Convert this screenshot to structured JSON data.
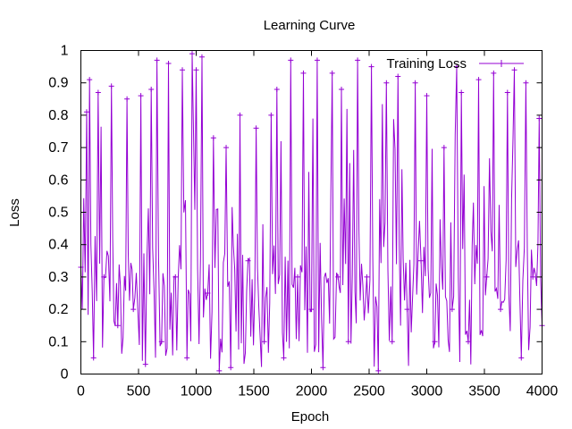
{
  "chart_data": {
    "type": "line",
    "title": "Learning Curve",
    "xlabel": "Epoch",
    "ylabel": "Loss",
    "xlim": [
      0,
      4000
    ],
    "ylim": [
      0,
      1
    ],
    "x_ticks": [
      "0",
      "500",
      "1000",
      "1500",
      "2000",
      "2500",
      "3000",
      "3500",
      "4000"
    ],
    "y_ticks": [
      "0",
      "0.1",
      "0.2",
      "0.3",
      "0.4",
      "0.5",
      "0.6",
      "0.7",
      "0.8",
      "0.9",
      "1"
    ],
    "grid": false,
    "legend_position": "top-right",
    "series": [
      {
        "name": "Training Loss",
        "color": "#9400d3",
        "marker": "plus",
        "points_sampled": [
          [
            0,
            0.33
          ],
          [
            50,
            0.81
          ],
          [
            75,
            0.91
          ],
          [
            110,
            0.05
          ],
          [
            150,
            0.87
          ],
          [
            200,
            0.3
          ],
          [
            265,
            0.89
          ],
          [
            320,
            0.15
          ],
          [
            400,
            0.85
          ],
          [
            455,
            0.2
          ],
          [
            520,
            0.86
          ],
          [
            560,
            0.03
          ],
          [
            610,
            0.88
          ],
          [
            660,
            0.97
          ],
          [
            700,
            0.1
          ],
          [
            760,
            0.96
          ],
          [
            820,
            0.3
          ],
          [
            880,
            0.94
          ],
          [
            920,
            0.05
          ],
          [
            965,
            0.99
          ],
          [
            1000,
            0.94
          ],
          [
            1050,
            0.98
          ],
          [
            1100,
            0.25
          ],
          [
            1150,
            0.73
          ],
          [
            1200,
            0.01
          ],
          [
            1260,
            0.7
          ],
          [
            1300,
            0.02
          ],
          [
            1380,
            0.8
          ],
          [
            1450,
            0.35
          ],
          [
            1520,
            0.76
          ],
          [
            1590,
            0.1
          ],
          [
            1650,
            0.8
          ],
          [
            1700,
            0.88
          ],
          [
            1760,
            0.05
          ],
          [
            1820,
            0.97
          ],
          [
            1880,
            0.3
          ],
          [
            1930,
            0.93
          ],
          [
            2000,
            0.2
          ],
          [
            2050,
            0.97
          ],
          [
            2100,
            0.02
          ],
          [
            2180,
            0.93
          ],
          [
            2230,
            0.3
          ],
          [
            2260,
            0.88
          ],
          [
            2320,
            0.1
          ],
          [
            2400,
            0.97
          ],
          [
            2480,
            0.3
          ],
          [
            2520,
            0.95
          ],
          [
            2580,
            0.01
          ],
          [
            2650,
            0.9
          ],
          [
            2700,
            0.1
          ],
          [
            2750,
            0.92
          ],
          [
            2830,
            0.2
          ],
          [
            2900,
            0.9
          ],
          [
            2950,
            0.35
          ],
          [
            3000,
            0.86
          ],
          [
            3070,
            0.1
          ],
          [
            3150,
            0.7
          ],
          [
            3220,
            0.2
          ],
          [
            3260,
            0.95
          ],
          [
            3300,
            0.87
          ],
          [
            3360,
            0.1
          ],
          [
            3450,
            0.91
          ],
          [
            3520,
            0.3
          ],
          [
            3580,
            0.93
          ],
          [
            3640,
            0.2
          ],
          [
            3700,
            0.87
          ],
          [
            3760,
            0.94
          ],
          [
            3820,
            0.05
          ],
          [
            3860,
            0.9
          ],
          [
            3920,
            0.3
          ],
          [
            3975,
            0.79
          ],
          [
            4000,
            0.15
          ]
        ]
      }
    ]
  }
}
